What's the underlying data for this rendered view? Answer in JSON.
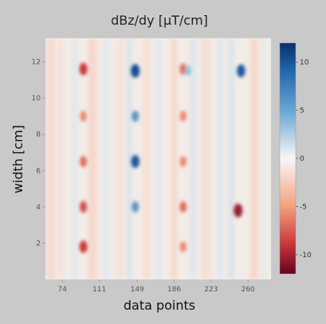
{
  "chart_data": {
    "type": "heatmap",
    "title": "dBz/dy [µT/cm]",
    "xlabel": "data points",
    "ylabel": "width [cm]",
    "xlim": [
      57,
      283
    ],
    "ylim": [
      0,
      13.3
    ],
    "x_ticks": [
      74,
      111,
      149,
      186,
      223,
      260
    ],
    "x_tick_labels": [
      "74",
      "111",
      "149",
      "186",
      "223",
      "260"
    ],
    "y_ticks": [
      2,
      4,
      6,
      8,
      10,
      12
    ],
    "y_tick_labels": [
      "2",
      "4",
      "6",
      "8",
      "10",
      "12"
    ],
    "colorbar": {
      "range": [
        -12,
        12
      ],
      "ticks": [
        10,
        5,
        0,
        -5,
        -10
      ],
      "tick_labels": [
        "10",
        "5",
        "0",
        "-5",
        "-10"
      ],
      "colormap": "RdBu",
      "high_color": "#08306b",
      "mid_color": "#f7f7f7",
      "low_color": "#67001f"
    },
    "grid": false,
    "spots": [
      {
        "x": 95,
        "y": 11.6,
        "value": -8
      },
      {
        "x": 95,
        "y": 9.0,
        "value": -5
      },
      {
        "x": 95,
        "y": 6.5,
        "value": -6
      },
      {
        "x": 95,
        "y": 4.0,
        "value": -7
      },
      {
        "x": 95,
        "y": 1.8,
        "value": -8
      },
      {
        "x": 147,
        "y": 11.5,
        "value": 10
      },
      {
        "x": 147,
        "y": 9.0,
        "value": 6
      },
      {
        "x": 147,
        "y": 6.5,
        "value": 9
      },
      {
        "x": 147,
        "y": 4.0,
        "value": 6
      },
      {
        "x": 195,
        "y": 11.6,
        "value": -6
      },
      {
        "x": 195,
        "y": 9.0,
        "value": -5
      },
      {
        "x": 195,
        "y": 6.5,
        "value": -5
      },
      {
        "x": 195,
        "y": 4.0,
        "value": -6
      },
      {
        "x": 195,
        "y": 1.8,
        "value": -5
      },
      {
        "x": 200,
        "y": 11.5,
        "value": 4
      },
      {
        "x": 250,
        "y": 3.8,
        "value": -10
      },
      {
        "x": 253,
        "y": 11.5,
        "value": 9
      }
    ]
  }
}
